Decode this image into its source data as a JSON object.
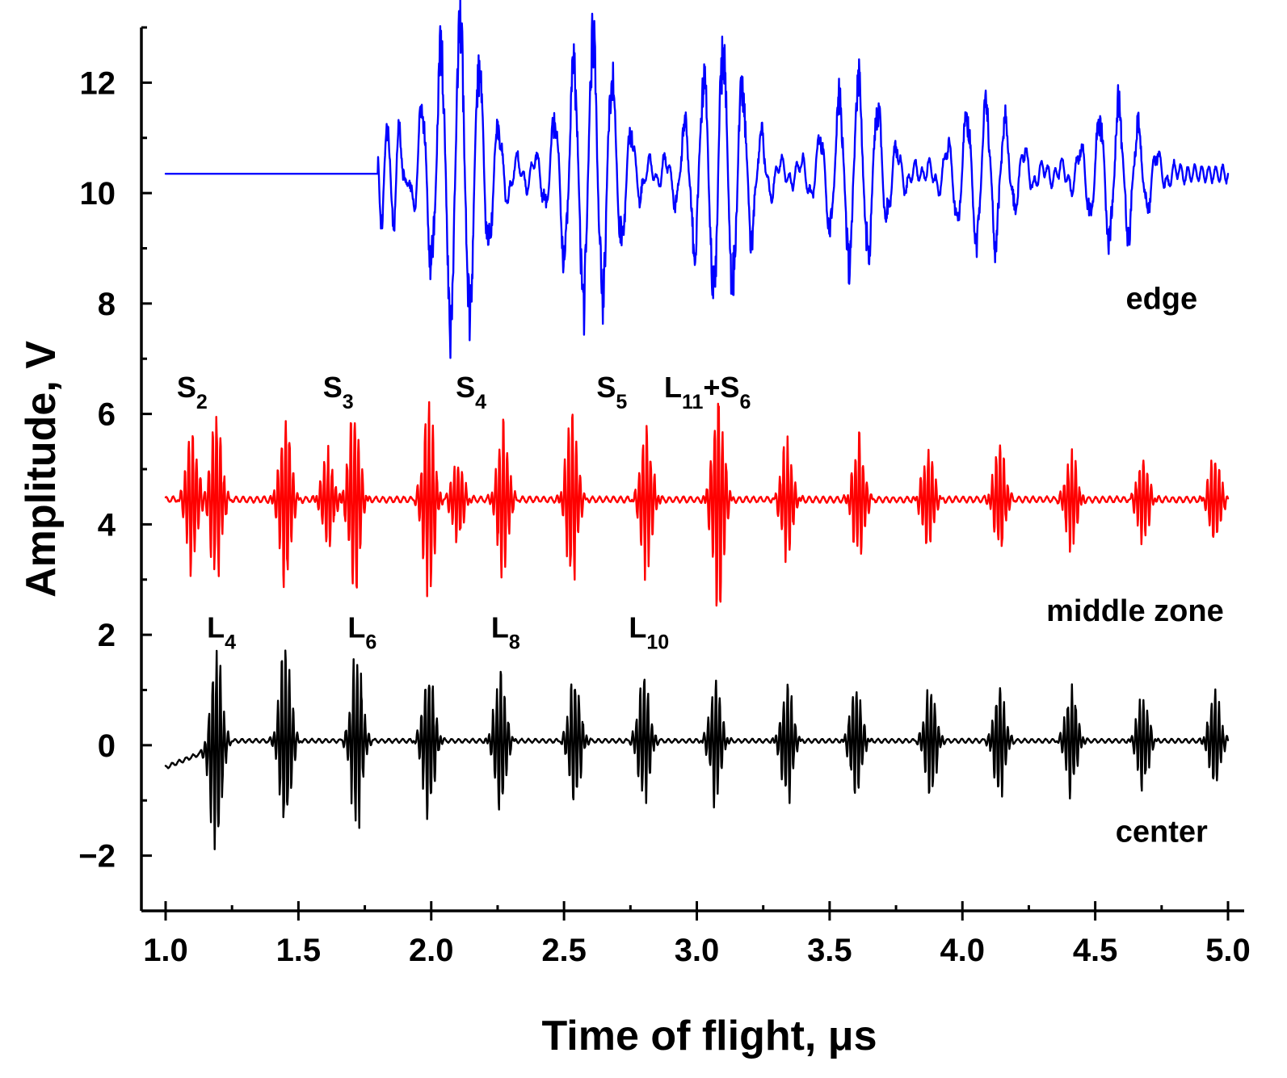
{
  "chart_data": {
    "type": "line",
    "title": "",
    "xlabel": "Time of flight, μs",
    "ylabel": "Amplitude, V",
    "xlim": [
      1.0,
      5.0
    ],
    "ylim": [
      -3,
      13
    ],
    "x_ticks": [
      1.0,
      1.5,
      2.0,
      2.5,
      3.0,
      3.5,
      4.0,
      4.5,
      5.0
    ],
    "x_tick_labels": [
      "1.0",
      "1.5",
      "2.0",
      "2.5",
      "3.0",
      "3.5",
      "4.0",
      "4.5",
      "5.0"
    ],
    "x_minor_step": 0.25,
    "y_ticks": [
      -2,
      0,
      2,
      4,
      6,
      8,
      10,
      12
    ],
    "y_tick_labels": [
      "−2",
      "0",
      "2",
      "4",
      "6",
      "8",
      "10",
      "12"
    ],
    "y_minor_step": 1,
    "grid": false,
    "series": [
      {
        "name": "edge",
        "label": "edge",
        "color": "#0000ff",
        "baseline": 10.35,
        "onset": 1.8,
        "pre_onset_value": 10.35,
        "bursts": [
          {
            "t": 1.83,
            "amp": 0.9,
            "width": 0.06
          },
          {
            "t": 2.1,
            "amp": 2.7,
            "width": 0.1
          },
          {
            "t": 2.6,
            "amp": 2.4,
            "width": 0.1
          },
          {
            "t": 3.09,
            "amp": 2.2,
            "width": 0.1
          },
          {
            "t": 3.6,
            "amp": 1.6,
            "width": 0.1
          },
          {
            "t": 4.08,
            "amp": 1.3,
            "width": 0.1
          },
          {
            "t": 4.58,
            "amp": 1.2,
            "width": 0.1
          }
        ],
        "ripple": 0.18
      },
      {
        "name": "middle zone",
        "label": "middle zone",
        "color": "#ff0000",
        "baseline": 4.45,
        "onset": 1.0,
        "pre_onset_value": 4.45,
        "bursts": [
          {
            "t": 1.1,
            "amp": 1.2,
            "width": 0.02
          },
          {
            "t": 1.19,
            "amp": 1.4,
            "width": 0.02
          },
          {
            "t": 1.45,
            "amp": 1.5,
            "width": 0.02
          },
          {
            "t": 1.61,
            "amp": 0.8,
            "width": 0.02
          },
          {
            "t": 1.71,
            "amp": 1.6,
            "width": 0.02
          },
          {
            "t": 1.99,
            "amp": 1.6,
            "width": 0.02
          },
          {
            "t": 2.1,
            "amp": 0.7,
            "width": 0.02
          },
          {
            "t": 2.27,
            "amp": 1.3,
            "width": 0.02
          },
          {
            "t": 2.53,
            "amp": 1.4,
            "width": 0.02
          },
          {
            "t": 2.81,
            "amp": 1.2,
            "width": 0.02
          },
          {
            "t": 3.08,
            "amp": 1.9,
            "width": 0.02
          },
          {
            "t": 3.34,
            "amp": 1.0,
            "width": 0.02
          },
          {
            "t": 3.61,
            "amp": 1.1,
            "width": 0.02
          },
          {
            "t": 3.87,
            "amp": 0.9,
            "width": 0.02
          },
          {
            "t": 4.14,
            "amp": 0.9,
            "width": 0.02
          },
          {
            "t": 4.41,
            "amp": 0.8,
            "width": 0.02
          },
          {
            "t": 4.68,
            "amp": 0.7,
            "width": 0.02
          },
          {
            "t": 4.95,
            "amp": 0.8,
            "width": 0.02
          }
        ],
        "ripple": 0.06
      },
      {
        "name": "center",
        "label": "center",
        "color": "#000000",
        "baseline": 0.08,
        "onset": 1.0,
        "pre_onset_value": -0.4,
        "bursts": [
          {
            "t": 1.19,
            "amp": 1.8,
            "width": 0.02
          },
          {
            "t": 1.45,
            "amp": 1.6,
            "width": 0.02
          },
          {
            "t": 1.72,
            "amp": 1.5,
            "width": 0.02
          },
          {
            "t": 1.99,
            "amp": 1.3,
            "width": 0.02
          },
          {
            "t": 2.26,
            "amp": 1.2,
            "width": 0.02
          },
          {
            "t": 2.54,
            "amp": 1.1,
            "width": 0.02
          },
          {
            "t": 2.8,
            "amp": 1.1,
            "width": 0.02
          },
          {
            "t": 3.07,
            "amp": 1.0,
            "width": 0.02
          },
          {
            "t": 3.34,
            "amp": 1.0,
            "width": 0.02
          },
          {
            "t": 3.6,
            "amp": 0.9,
            "width": 0.02
          },
          {
            "t": 3.88,
            "amp": 0.9,
            "width": 0.02
          },
          {
            "t": 4.14,
            "amp": 0.9,
            "width": 0.02
          },
          {
            "t": 4.41,
            "amp": 0.9,
            "width": 0.02
          },
          {
            "t": 4.68,
            "amp": 0.8,
            "width": 0.02
          },
          {
            "t": 4.95,
            "amp": 0.8,
            "width": 0.02
          }
        ],
        "ripple": 0.04
      }
    ],
    "trace_labels": [
      {
        "text": "edge",
        "x": 4.75,
        "y": 7.9
      },
      {
        "text": "middle zone",
        "x": 4.65,
        "y": 2.25
      },
      {
        "text": "center",
        "x": 4.75,
        "y": -1.75
      }
    ],
    "annotations": [
      {
        "main": "S",
        "sub": "2",
        "x": 1.1,
        "y": 6.3
      },
      {
        "main": "S",
        "sub": "3",
        "x": 1.65,
        "y": 6.3
      },
      {
        "main": "S",
        "sub": "4",
        "x": 2.15,
        "y": 6.3
      },
      {
        "main": "S",
        "sub": "5",
        "x": 2.68,
        "y": 6.3
      },
      {
        "main": "L",
        "sub": "11",
        "sub2_main": "+S",
        "sub2": "6",
        "x": 3.04,
        "y": 6.3
      },
      {
        "main": "L",
        "sub": "4",
        "x": 1.21,
        "y": 1.95
      },
      {
        "main": "L",
        "sub": "6",
        "x": 1.74,
        "y": 1.95
      },
      {
        "main": "L",
        "sub": "8",
        "x": 2.28,
        "y": 1.95
      },
      {
        "main": "L",
        "sub": "10",
        "x": 2.82,
        "y": 1.95
      }
    ]
  }
}
